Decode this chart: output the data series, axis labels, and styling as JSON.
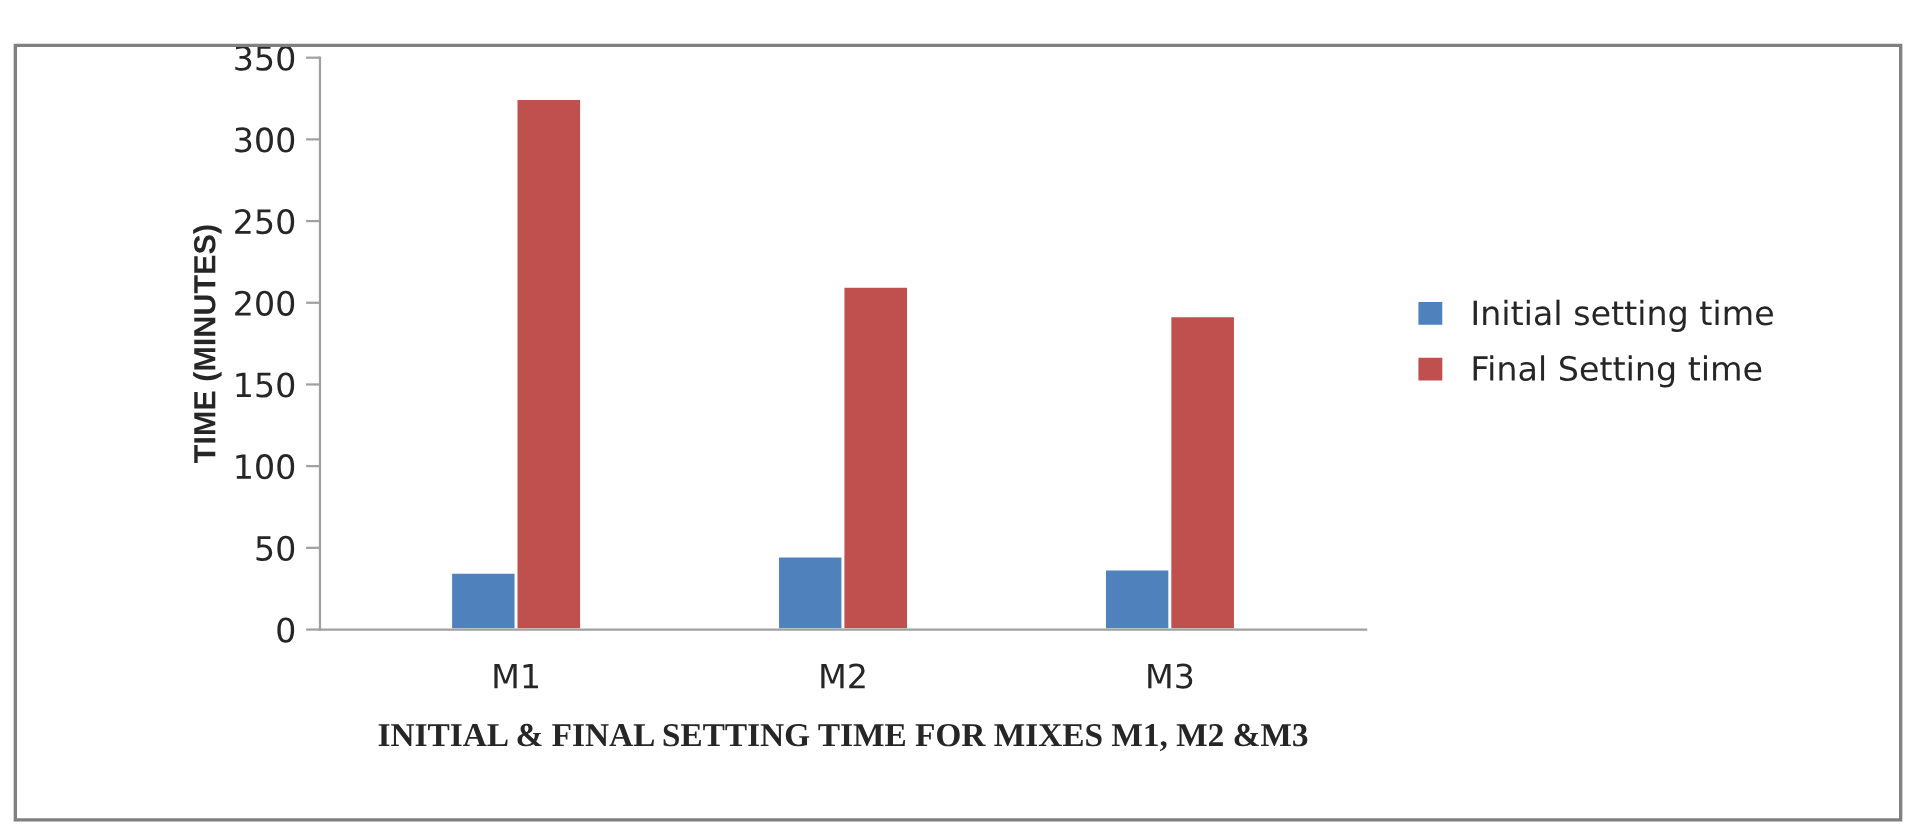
{
  "chart_data": {
    "type": "bar",
    "xlabel": "INITIAL & FINAL SETTING TIME FOR MIXES M1, M2 &M3",
    "ylabel": "TIME (MINUTES)",
    "categories": [
      "M1",
      "M2",
      "M3"
    ],
    "series": [
      {
        "name": "Initial setting time",
        "color": "#4f81bd",
        "values": [
          35,
          45,
          37
        ]
      },
      {
        "name": "Final Setting time",
        "color": "#c0504d",
        "values": [
          325,
          210,
          192
        ]
      }
    ],
    "ylim": [
      0,
      350
    ],
    "yticks": [
      0,
      50,
      100,
      150,
      200,
      250,
      300,
      350
    ],
    "grid": false,
    "legend": "right"
  }
}
